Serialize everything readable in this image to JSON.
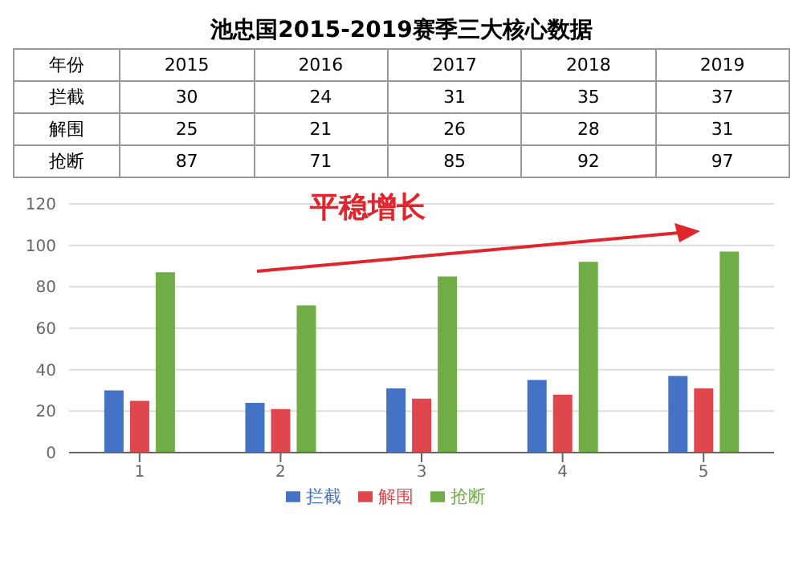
{
  "chart_data": {
    "type": "bar",
    "title": "池忠国2015-2019赛季三大核心数据",
    "categories": [
      "1",
      "2",
      "3",
      "4",
      "5"
    ],
    "series": [
      {
        "name": "拦截",
        "color": "#4472c4",
        "values": [
          30,
          24,
          31,
          35,
          37
        ]
      },
      {
        "name": "解围",
        "color": "#e0474c",
        "values": [
          25,
          21,
          26,
          28,
          31
        ]
      },
      {
        "name": "抢断",
        "color": "#70ad47",
        "values": [
          87,
          71,
          85,
          92,
          97
        ]
      }
    ],
    "ylim": [
      0,
      120
    ],
    "yticks": [
      0,
      20,
      40,
      60,
      80,
      100,
      120
    ],
    "grid": "y",
    "legend": "bottom",
    "data_labels": true,
    "annotations": [
      "年份",
      "2015",
      "2016",
      "2017",
      "2018",
      "2019",
      "平稳增长"
    ]
  }
}
